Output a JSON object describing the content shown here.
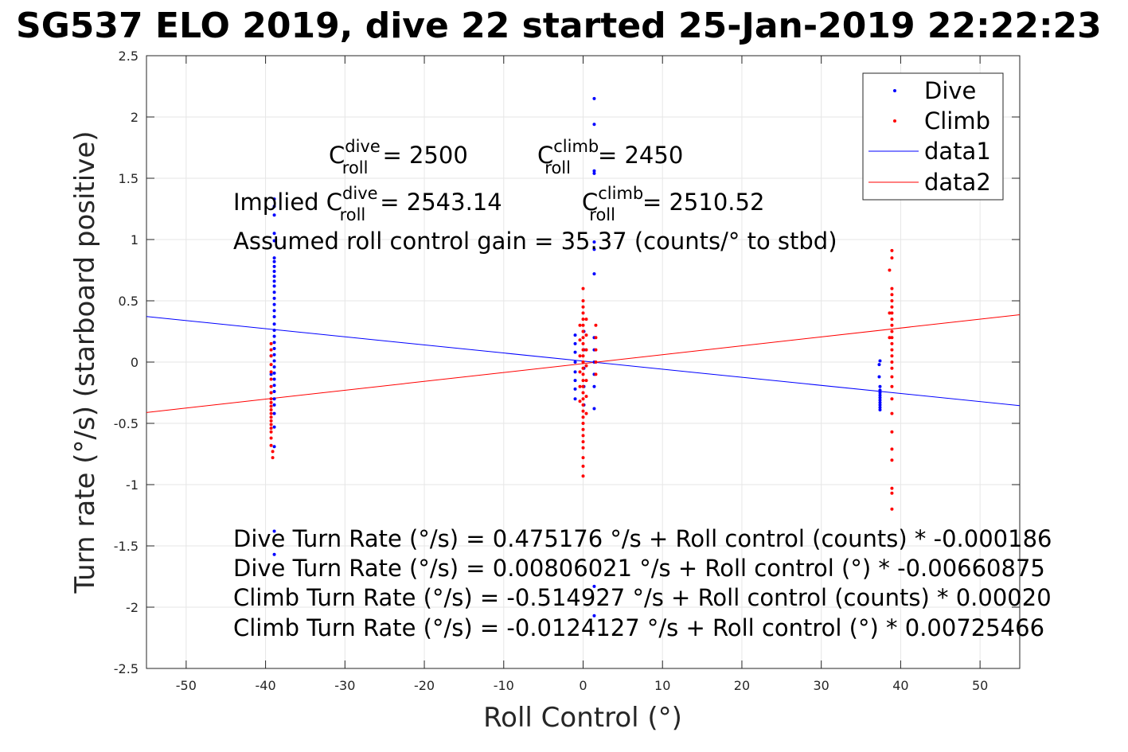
{
  "chart_data": {
    "type": "scatter",
    "title": "SG537 ELO 2019, dive 22 started 25-Jan-2019 22:22:23",
    "xlabel": "Roll Control (°)",
    "ylabel": "Turn rate (°/s) (starboard positive)",
    "xlim": [
      -55,
      55
    ],
    "ylim": [
      -2.5,
      2.5
    ],
    "xticks": [
      -50,
      -40,
      -30,
      -20,
      -10,
      0,
      10,
      20,
      30,
      40,
      50
    ],
    "yticks": [
      2.5,
      2,
      1.5,
      1,
      0.5,
      0,
      -0.5,
      -1,
      -1.5,
      -2,
      -2.5
    ],
    "grid": true,
    "legend_position": "top-right",
    "colors": {
      "dive": "#0000ff",
      "climb": "#ff0000"
    },
    "series": [
      {
        "name": "Dive",
        "kind": "points",
        "color": "#0000ff",
        "points": [
          [
            -38.9,
            1.33
          ],
          [
            -38.9,
            1.27
          ],
          [
            -38.9,
            1.2
          ],
          [
            -38.9,
            1.05
          ],
          [
            -38.9,
            0.99
          ],
          [
            -38.9,
            0.85
          ],
          [
            -38.9,
            0.82
          ],
          [
            -38.9,
            0.78
          ],
          [
            -38.9,
            0.74
          ],
          [
            -38.9,
            0.7
          ],
          [
            -38.9,
            0.66
          ],
          [
            -38.9,
            0.62
          ],
          [
            -38.9,
            0.57
          ],
          [
            -38.9,
            0.52
          ],
          [
            -38.9,
            0.47
          ],
          [
            -38.9,
            0.42
          ],
          [
            -38.9,
            0.37
          ],
          [
            -38.9,
            0.31
          ],
          [
            -38.9,
            0.26
          ],
          [
            -38.9,
            0.21
          ],
          [
            -38.9,
            0.16
          ],
          [
            -38.9,
            0.11
          ],
          [
            -38.9,
            0.06
          ],
          [
            -38.9,
            0.01
          ],
          [
            -38.9,
            -0.04
          ],
          [
            -38.9,
            -0.09
          ],
          [
            -38.9,
            -0.14
          ],
          [
            -38.9,
            -0.19
          ],
          [
            -38.9,
            -0.24
          ],
          [
            -38.9,
            -0.3
          ],
          [
            -38.9,
            -0.35
          ],
          [
            -38.9,
            -0.42
          ],
          [
            -38.9,
            -0.53
          ],
          [
            -38.9,
            -0.69
          ],
          [
            -38.9,
            -1.38
          ],
          [
            -38.9,
            -1.57
          ],
          [
            -39.3,
            0.05
          ],
          [
            -39.3,
            -0.1
          ],
          [
            -39.3,
            -0.25
          ],
          [
            -1.0,
            0.22
          ],
          [
            -1.0,
            0.15
          ],
          [
            -1.0,
            0.08
          ],
          [
            -1.0,
            0.0
          ],
          [
            -1.0,
            -0.08
          ],
          [
            -1.0,
            -0.15
          ],
          [
            -1.0,
            -0.22
          ],
          [
            -1.0,
            -0.3
          ],
          [
            0.1,
            0.25
          ],
          [
            0.1,
            0.1
          ],
          [
            0.1,
            -0.05
          ],
          [
            0.1,
            -0.2
          ],
          [
            0.1,
            -0.35
          ],
          [
            1.4,
            2.15
          ],
          [
            1.4,
            1.94
          ],
          [
            1.4,
            1.56
          ],
          [
            1.4,
            1.54
          ],
          [
            1.4,
            0.98
          ],
          [
            1.4,
            0.92
          ],
          [
            1.4,
            0.72
          ],
          [
            1.4,
            0.2
          ],
          [
            1.4,
            0.1
          ],
          [
            1.4,
            0.0
          ],
          [
            1.4,
            -0.1
          ],
          [
            1.4,
            -0.2
          ],
          [
            1.4,
            -0.38
          ],
          [
            1.4,
            -1.83
          ],
          [
            1.4,
            -2.07
          ],
          [
            37.4,
            0.01
          ],
          [
            37.3,
            -0.02
          ],
          [
            37.3,
            -0.12
          ],
          [
            37.4,
            -0.2
          ],
          [
            37.4,
            -0.23
          ],
          [
            37.4,
            -0.25
          ],
          [
            37.4,
            -0.27
          ],
          [
            37.4,
            -0.29
          ],
          [
            37.4,
            -0.31
          ],
          [
            37.4,
            -0.33
          ],
          [
            37.4,
            -0.35
          ],
          [
            37.4,
            -0.37
          ],
          [
            37.4,
            -0.39
          ]
        ]
      },
      {
        "name": "Climb",
        "kind": "points",
        "color": "#ff0000",
        "points": [
          [
            -39.3,
            0.15
          ],
          [
            -39.3,
            0.1
          ],
          [
            -39.3,
            0.05
          ],
          [
            -39.3,
            -0.02
          ],
          [
            -39.3,
            -0.08
          ],
          [
            -39.3,
            -0.14
          ],
          [
            -39.3,
            -0.2
          ],
          [
            -39.3,
            -0.25
          ],
          [
            -39.3,
            -0.3
          ],
          [
            -39.3,
            -0.33
          ],
          [
            -39.3,
            -0.36
          ],
          [
            -39.3,
            -0.39
          ],
          [
            -39.3,
            -0.42
          ],
          [
            -39.3,
            -0.45
          ],
          [
            -39.3,
            -0.48
          ],
          [
            -39.3,
            -0.51
          ],
          [
            -39.3,
            -0.54
          ],
          [
            -39.3,
            -0.57
          ],
          [
            -39.3,
            -0.62
          ],
          [
            -39.3,
            -0.68
          ],
          [
            -39.1,
            -0.73
          ],
          [
            -39.1,
            -0.78
          ],
          [
            0.0,
            0.6
          ],
          [
            0.0,
            0.5
          ],
          [
            0.0,
            0.45
          ],
          [
            0.0,
            0.4
          ],
          [
            0.0,
            0.35
          ],
          [
            0.0,
            0.3
          ],
          [
            0.0,
            0.25
          ],
          [
            0.0,
            0.2
          ],
          [
            0.0,
            0.15
          ],
          [
            0.0,
            0.1
          ],
          [
            0.0,
            0.05
          ],
          [
            0.0,
            0.0
          ],
          [
            0.0,
            -0.05
          ],
          [
            0.0,
            -0.1
          ],
          [
            0.0,
            -0.15
          ],
          [
            0.0,
            -0.2
          ],
          [
            0.0,
            -0.25
          ],
          [
            0.0,
            -0.3
          ],
          [
            0.0,
            -0.35
          ],
          [
            0.0,
            -0.4
          ],
          [
            0.0,
            -0.45
          ],
          [
            0.0,
            -0.5
          ],
          [
            0.0,
            -0.55
          ],
          [
            0.0,
            -0.6
          ],
          [
            0.0,
            -0.65
          ],
          [
            0.0,
            -0.7
          ],
          [
            0.0,
            -0.78
          ],
          [
            0.0,
            -0.85
          ],
          [
            0.0,
            -0.93
          ],
          [
            -0.4,
            0.3
          ],
          [
            -0.4,
            0.18
          ],
          [
            -0.4,
            0.05
          ],
          [
            -0.4,
            -0.08
          ],
          [
            -0.4,
            -0.2
          ],
          [
            -0.4,
            -0.32
          ],
          [
            0.4,
            0.35
          ],
          [
            0.4,
            0.22
          ],
          [
            0.4,
            0.1
          ],
          [
            0.4,
            -0.03
          ],
          [
            0.4,
            -0.15
          ],
          [
            0.4,
            -0.28
          ],
          [
            0.4,
            -0.42
          ],
          [
            1.6,
            0.3
          ],
          [
            1.6,
            0.2
          ],
          [
            1.6,
            0.1
          ],
          [
            1.6,
            0.0
          ],
          [
            1.6,
            -0.1
          ],
          [
            38.9,
            0.91
          ],
          [
            38.9,
            0.85
          ],
          [
            38.9,
            0.6
          ],
          [
            38.9,
            0.55
          ],
          [
            38.9,
            0.5
          ],
          [
            38.9,
            0.45
          ],
          [
            38.9,
            0.4
          ],
          [
            38.9,
            0.35
          ],
          [
            38.9,
            0.3
          ],
          [
            38.9,
            0.25
          ],
          [
            38.9,
            0.2
          ],
          [
            38.9,
            0.15
          ],
          [
            38.9,
            0.1
          ],
          [
            38.9,
            0.05
          ],
          [
            38.9,
            0.0
          ],
          [
            38.9,
            -0.05
          ],
          [
            38.9,
            -0.12
          ],
          [
            38.9,
            -0.2
          ],
          [
            38.9,
            -0.3
          ],
          [
            38.9,
            -0.42
          ],
          [
            38.9,
            -0.57
          ],
          [
            38.9,
            -0.71
          ],
          [
            38.9,
            -0.8
          ],
          [
            38.9,
            -1.03
          ],
          [
            38.9,
            -1.07
          ],
          [
            38.9,
            -1.2
          ],
          [
            38.6,
            0.75
          ],
          [
            38.6,
            0.4
          ],
          [
            38.6,
            0.2
          ]
        ]
      },
      {
        "name": "data1",
        "kind": "line",
        "color": "#0000ff",
        "x": [
          -55,
          55
        ],
        "y": [
          0.3715,
          -0.3554
        ]
      },
      {
        "name": "data2",
        "kind": "line",
        "color": "#ff0000",
        "x": [
          -55,
          55
        ],
        "y": [
          -0.4114,
          0.3866
        ]
      }
    ],
    "annotations": {
      "c_dive_label": "= 2500",
      "c_climb_label": "= 2450",
      "implied_prefix": "Implied ",
      "implied_dive_value": "= 2543.14",
      "implied_climb_value": "= 2510.52",
      "c_base": "C",
      "sup_dive": "dive",
      "sup_climb": "climb",
      "sub_roll": "roll",
      "gain_text": "Assumed roll control gain = 35.37 (counts/° to stbd)",
      "fit_lines": [
        "Dive Turn Rate (°/s) = 0.475176 °/s + Roll control (counts) * -0.000186",
        "Dive Turn Rate (°/s) = 0.00806021 °/s + Roll control (°) * -0.00660875",
        "Climb Turn Rate (°/s) = -0.514927 °/s + Roll control (counts) * 0.00020",
        "Climb Turn Rate (°/s) = -0.0124127 °/s + Roll control (°) * 0.00725466"
      ]
    }
  }
}
